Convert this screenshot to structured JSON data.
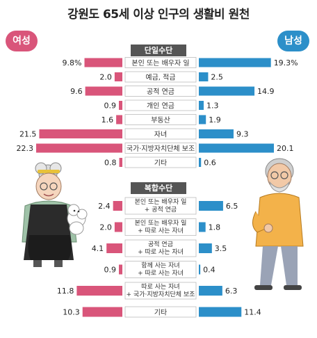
{
  "title": "강원도 65세 이상 인구의 생활비 원천",
  "legend": {
    "female": "여성",
    "male": "남성"
  },
  "colors": {
    "female": "#d9557a",
    "male": "#2c8fc9"
  },
  "chart_data": {
    "type": "bar",
    "orientation": "horizontal-butterfly",
    "sections": [
      {
        "name": "단일수단",
        "categories": [
          [
            "본인 또는 배우자 일"
          ],
          [
            "예금, 적금"
          ],
          [
            "공적 연금"
          ],
          [
            "개인 연금"
          ],
          [
            "부동산"
          ],
          [
            "자녀"
          ],
          [
            "국가·지방자치단체 보조"
          ],
          [
            "기타"
          ]
        ],
        "female_labels": [
          "9.8%",
          "2.0",
          "9.6",
          "0.9",
          "1.6",
          "21.5",
          "22.3",
          "0.8"
        ],
        "male_labels": [
          "19.3%",
          "2.5",
          "14.9",
          "1.3",
          "1.9",
          "9.3",
          "20.1",
          "0.6"
        ],
        "female": [
          9.8,
          2.0,
          9.6,
          0.9,
          1.6,
          21.5,
          22.3,
          0.8
        ],
        "male": [
          19.3,
          2.5,
          14.9,
          1.3,
          1.9,
          9.3,
          20.1,
          0.6
        ]
      },
      {
        "name": "복합수단",
        "categories": [
          [
            "본인 또는 배우자 일",
            "+ 공적 연금"
          ],
          [
            "본인 또는 배우자 일",
            "+ 따로 사는 자녀"
          ],
          [
            "공적 연금",
            "+ 따로 사는 자녀"
          ],
          [
            "함께 사는 자녀",
            "+ 따로 사는 자녀"
          ],
          [
            "따로 사는 자녀",
            "+ 국가·지방자치단체 보조"
          ],
          [
            "기타"
          ]
        ],
        "female_labels": [
          "2.4",
          "2.0",
          "4.1",
          "0.9",
          "11.8",
          "10.3"
        ],
        "male_labels": [
          "6.5",
          "1.8",
          "3.5",
          "0.4",
          "6.3",
          "11.4"
        ],
        "female": [
          2.4,
          2.0,
          4.1,
          0.9,
          11.8,
          10.3
        ],
        "male": [
          6.5,
          1.8,
          3.5,
          0.4,
          6.3,
          11.4
        ]
      }
    ]
  }
}
